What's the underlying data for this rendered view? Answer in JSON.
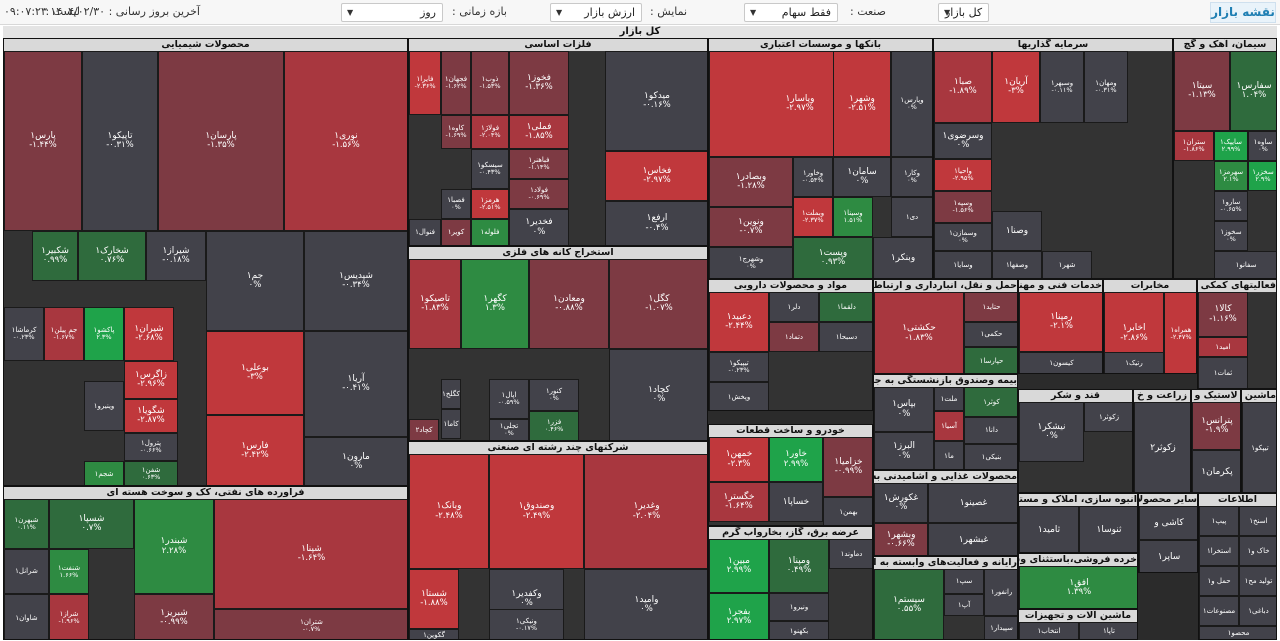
{
  "header": {
    "brand": "نقشه بازار",
    "list_label": "لیست :",
    "list_value": "کل بازار",
    "industry_label": "صنعت :",
    "industry_value": "فقط سهام",
    "display_label": "نمایش :",
    "display_value": "ارزش بازار",
    "period_label": "بازه زمانی :",
    "period_value": "روز",
    "last_update_label": "آخرین بروز رسانی :",
    "last_update_value": "۱۴۰۴/۰۲/۳۰ ۰۹:۰۷:۲۳"
  },
  "map_title": "کل بازار",
  "colors": {
    "strong_neg": "#c0383c",
    "neg": "#a8373f",
    "weak_neg": "#7d3a43",
    "neutral": "#42424a",
    "weak_pos": "#2f6b3d",
    "pos": "#2e8b42",
    "strong_pos": "#1fa34a"
  },
  "sectors": [
    {
      "title": "محصولات شیمیایی",
      "tiles": [
        [
          "نوری۱",
          "-۱.۵۶%",
          "neg"
        ],
        [
          "پارسان۱",
          "-۱.۳۵%",
          "weak_neg"
        ],
        [
          "تاپیکو۱",
          "-۰.۳۱%",
          "neutral"
        ],
        [
          "پارس۱",
          "-۱.۴۴%",
          "weak_neg"
        ],
        [
          "شپدیس۱",
          "-۰.۳۴%",
          "neutral"
        ],
        [
          "جم۱",
          "۰%",
          "neutral"
        ],
        [
          "شیراز۱",
          "-۰.۱۸%",
          "neutral"
        ],
        [
          "شخارک۱",
          "۰.۷۶%",
          "weak_pos"
        ],
        [
          "شکبیر۱",
          "۰.۹۹%",
          "weak_pos"
        ],
        [
          "آریا۱",
          "-۰.۴۱%",
          "neutral"
        ],
        [
          "بوعلی۱",
          "-۳%",
          "strong_neg"
        ],
        [
          "شیران۱",
          "-۲.۶۸%",
          "strong_neg"
        ],
        [
          "پاکشو۱",
          "۲.۳%",
          "strong_pos"
        ],
        [
          "جم پیلن۱",
          "-۱.۶۷%",
          "neg"
        ],
        [
          "کرماشا۱",
          "-۰.۲۳%",
          "neutral"
        ],
        [
          "زاگرس۱",
          "-۲.۹۶%",
          "strong_neg"
        ],
        [
          "شگویا۱",
          "-۲.۸۷%",
          "strong_neg"
        ],
        [
          "مارون۱",
          "۰%",
          "neutral"
        ],
        [
          "فارس۱",
          "-۲.۴۲%",
          "strong_neg"
        ],
        [
          "پترول۱",
          "-۰.۶۶%",
          "neutral"
        ],
        [
          "شفن۱",
          "۰.۶۳%",
          "weak_pos"
        ],
        [
          "وینیرو۱",
          "",
          "neutral"
        ],
        [
          "شجم۱",
          "",
          "pos"
        ]
      ]
    },
    {
      "title": "فلزات اساسی",
      "tiles": [
        [
          "میدکو۱",
          "-۰.۱۶%",
          "neutral"
        ],
        [
          "فخوز۱",
          "-۱.۳۶%",
          "weak_neg"
        ],
        [
          "ذوب۱",
          "-۱.۵۳%",
          "weak_neg"
        ],
        [
          "فجهان۱",
          "-۱.۶۲%",
          "weak_neg"
        ],
        [
          "فایرا۱",
          "-۲.۳۶%",
          "strong_neg"
        ],
        [
          "فخاس۱",
          "-۲.۹۷%",
          "strong_neg"
        ],
        [
          "فملی۱",
          "-۱.۸۵%",
          "neg"
        ],
        [
          "فولاژ۱",
          "-۲.۰۴%",
          "neg"
        ],
        [
          "کاوه۱",
          "-۱.۶۹%",
          "weak_neg"
        ],
        [
          "ارفع۱",
          "-۰.۴%",
          "neutral"
        ],
        [
          "فباهنر۱",
          "-۱.۱۴%",
          "weak_neg"
        ],
        [
          "فولاد۱",
          "-۰.۶۹%",
          "weak_neg"
        ],
        [
          "فخدیر۱",
          "۰%",
          "neutral"
        ],
        [
          "سیسکو۱",
          "-۰.۴۳%",
          "neutral"
        ],
        [
          "هرمز۱",
          "-۲.۵۱%",
          "strong_neg"
        ],
        [
          "فصبا۱",
          "۰%",
          "neutral"
        ],
        [
          "فلوله۱",
          "",
          "pos"
        ],
        [
          "کویر۱",
          "",
          "weak_neg"
        ],
        [
          "فنوال۱",
          "",
          "neutral"
        ]
      ]
    },
    {
      "title": "استخراج کانه های فلزی",
      "tiles": [
        [
          "کگل۱",
          "-۱.۰۷%",
          "weak_neg"
        ],
        [
          "ومعادن۱",
          "-۰.۸۸%",
          "weak_neg"
        ],
        [
          "کگهر۱",
          "۱.۳%",
          "pos"
        ],
        [
          "تاصیکو۱",
          "-۱.۸۳%",
          "neg"
        ],
        [
          "کچاد۱",
          "۰%",
          "neutral"
        ],
        [
          "کنور۱",
          "۰%",
          "neutral"
        ],
        [
          "اپال۱",
          "-۰.۵۹%",
          "neutral"
        ],
        [
          "کگلخ۱",
          "",
          "neutral"
        ],
        [
          "کاما۱",
          "",
          "neutral"
        ],
        [
          "فزر۱",
          "۰.۴۶%",
          "weak_pos"
        ],
        [
          "تجلی۱",
          "۰%",
          "neutral"
        ],
        [
          "کچاد۲",
          "",
          "weak_neg"
        ]
      ]
    },
    {
      "title": "شرکتهای چند رشته ای صنعتی",
      "tiles": [
        [
          "وغدیر۱",
          "-۲.۰۴%",
          "neg"
        ],
        [
          "وصندوق۱",
          "-۲.۴۹%",
          "strong_neg"
        ],
        [
          "وبانک۱",
          "-۲.۴۸%",
          "strong_neg"
        ],
        [
          "وامید۱",
          "۰%",
          "neutral"
        ],
        [
          "وکفدیر۱",
          "۰%",
          "neutral"
        ],
        [
          "شستا۱",
          "-۱.۸۸%",
          "strong_neg"
        ],
        [
          "ونیکی۱",
          "-۰.۱۷%",
          "neutral"
        ],
        [
          "گکوین۱",
          "",
          "neutral"
        ]
      ]
    },
    {
      "title": "فراورده های نفتی، کک و سوخت هسته ای",
      "tiles": [
        [
          "شپنا۱",
          "-۱.۶۴%",
          "neg"
        ],
        [
          "شبندر۱",
          "۲.۲۸%",
          "pos"
        ],
        [
          "شسپا۱",
          "۰.۷%",
          "weak_pos"
        ],
        [
          "شبهرن۱",
          "۰.۱۱%",
          "weak_pos"
        ],
        [
          "شنفت۱",
          "۱.۶۶%",
          "pos"
        ],
        [
          "شرانل۱",
          "",
          "neutral"
        ],
        [
          "شتران۱",
          "-۰.۷%",
          "weak_neg"
        ],
        [
          "شبریز۱",
          "-۰.۹۹%",
          "weak_neg"
        ],
        [
          "شراز۱",
          "-۱.۹۶%",
          "neg"
        ],
        [
          "شاوان۱",
          "",
          "neutral"
        ]
      ]
    },
    {
      "title": "بانکها و موسسات اعتباری",
      "tiles": [
        [
          "وپاسار۱",
          "-۲.۹۷%",
          "strong_neg"
        ],
        [
          "وشهر۱",
          "-۲.۵۱%",
          "strong_neg"
        ],
        [
          "وپارس۱",
          "۰%",
          "neutral"
        ],
        [
          "وبصادر۱",
          "-۱.۲۸%",
          "weak_neg"
        ],
        [
          "وخاور۱",
          "-۰.۵۴%",
          "neutral"
        ],
        [
          "سامان۱",
          "۰%",
          "neutral"
        ],
        [
          "وکار۱",
          "۰%",
          "neutral"
        ],
        [
          "ونوین۱",
          "-۰.۷%",
          "weak_neg"
        ],
        [
          "وبملت۱",
          "-۲.۳۷%",
          "strong_neg"
        ],
        [
          "وسینا۱",
          "۱.۵۱%",
          "pos"
        ],
        [
          "وشهرج۱",
          "۰%",
          "neutral"
        ],
        [
          "وپست۱",
          "۰.۹۳%",
          "weak_pos"
        ],
        [
          "وبنکر۱",
          "",
          "neutral"
        ],
        [
          "دی۱",
          "",
          "neutral"
        ]
      ]
    },
    {
      "title": "سرمایه گذاریها",
      "tiles": [
        [
          "صبا۱",
          "-۱.۸۹%",
          "neg"
        ],
        [
          "آریان۱",
          "-۳%",
          "strong_neg"
        ],
        [
          "وسبهر۱",
          "-۰.۱۱%",
          "neutral"
        ],
        [
          "ومهان۱",
          "-۰.۳۱%",
          "neutral"
        ],
        [
          "وسرضوی۱",
          "۰%",
          "neutral"
        ],
        [
          "واحیا۱",
          "-۲.۹۵%",
          "strong_neg"
        ],
        [
          "وسپه۱",
          "-۱.۵۶%",
          "weak_neg"
        ],
        [
          "وسمازن۱",
          "۰%",
          "neutral"
        ],
        [
          "وسایا۱",
          "",
          "neutral"
        ],
        [
          "وصنا۱",
          "",
          "neutral"
        ],
        [
          "وصفها۱",
          "",
          "neutral"
        ],
        [
          "شهر۱",
          "",
          "neutral"
        ]
      ]
    },
    {
      "title": "سیمان، آهک و گچ",
      "tiles": [
        [
          "سیتا۱",
          "-۱.۱۳%",
          "weak_neg"
        ],
        [
          "سفارس۱",
          "۱.۰۴%",
          "weak_pos"
        ],
        [
          "ستران۱",
          "-۱.۸۶%",
          "neg"
        ],
        [
          "سایپک۱",
          "۲.۹۹%",
          "strong_pos"
        ],
        [
          "ساوه۱",
          "۰%",
          "neutral"
        ],
        [
          "سهرمز۱",
          "۲.۱%",
          "pos"
        ],
        [
          "سخزر۱",
          "۲.۹%",
          "strong_pos"
        ],
        [
          "سارو۱",
          "-۰.۶۵%",
          "neutral"
        ],
        [
          "سخوز۱",
          "۰%",
          "neutral"
        ],
        [
          "سفانو۱",
          "",
          "neutral"
        ]
      ]
    },
    {
      "title": "مواد و محصولات دارویی",
      "tiles": [
        [
          "دعبید۱",
          "-۲.۴۴%",
          "strong_neg"
        ],
        [
          "دلر۱",
          "",
          "neutral"
        ],
        [
          "دتماد۱",
          "",
          "weak_neg"
        ],
        [
          "تیپیکو۱",
          "-۰.۲۳%",
          "neutral"
        ],
        [
          "دلقما۱",
          "",
          "weak_pos"
        ],
        [
          "دسبحا۱",
          "",
          "neutral"
        ],
        [
          "وپخش۱",
          "",
          "neutral"
        ]
      ]
    },
    {
      "title": "حمل و نقل، انبارداری و ارتباطات",
      "tiles": [
        [
          "حکشتی۱",
          "-۱.۸۳%",
          "neg"
        ],
        [
          "حتاید۱",
          "",
          "weak_neg"
        ],
        [
          "حکمی۱",
          "",
          "neutral"
        ],
        [
          "حپارسا۱",
          "",
          "weak_pos"
        ]
      ]
    },
    {
      "title": "خدمات فنی و مهندسی",
      "tiles": [
        [
          "رمپنا۱",
          "-۲.۱%",
          "strong_neg"
        ],
        [
          "کیسون۱",
          "",
          "neutral"
        ]
      ]
    },
    {
      "title": "مخابرات",
      "tiles": [
        [
          "اخابر۱",
          "-۲.۸۶%",
          "strong_neg"
        ],
        [
          "همراه۱",
          "-۲.۴۷%",
          "strong_neg"
        ],
        [
          "رتیک۱",
          "",
          "neutral"
        ]
      ]
    },
    {
      "title": "فعالیتهای کمکی به",
      "tiles": [
        [
          "کالا۱",
          "-۱.۱۶%",
          "weak_neg"
        ],
        [
          "امید۱",
          "",
          "neg"
        ],
        [
          "ثمات۱",
          "",
          "neutral"
        ]
      ]
    },
    {
      "title": "بیمه وصندوق بازنشستگی به جزتام",
      "tiles": [
        [
          "بپاس۱",
          "۰%",
          "neutral"
        ],
        [
          "البرز۱",
          "۰%",
          "neutral"
        ],
        [
          "کوثر۱",
          "",
          "weak_pos"
        ],
        [
          "ملت۱",
          "",
          "neutral"
        ],
        [
          "آسیا۱",
          "",
          "neg"
        ],
        [
          "ما۱",
          "",
          "neutral"
        ],
        [
          "دانا۱",
          "",
          "neutral"
        ],
        [
          "بنیکی۱",
          "",
          "neutral"
        ]
      ]
    },
    {
      "title": "قند و شکر",
      "tiles": [
        [
          "نیشکر۱",
          "۰%",
          "neutral"
        ],
        [
          "زکوثر۱",
          "",
          "neutral"
        ]
      ]
    },
    {
      "title": "زراعت و خ",
      "tiles": [
        [
          "زکوثر۲",
          "",
          "neutral"
        ]
      ]
    },
    {
      "title": "لاستیک و",
      "tiles": [
        [
          "پترانس۱",
          "-۱.۹%",
          "weak_neg"
        ],
        [
          "پکرمان۱",
          "",
          "neutral"
        ]
      ]
    },
    {
      "title": "ماشین آل",
      "tiles": [
        [
          "تیپکو۱",
          "",
          "neutral"
        ]
      ]
    },
    {
      "title": "خودرو و ساخت قطعات",
      "tiles": [
        [
          "خمهن۱",
          "-۲.۳%",
          "strong_neg"
        ],
        [
          "خاور۱",
          "۲.۹۹%",
          "strong_pos"
        ],
        [
          "خگستر۱",
          "-۱.۶۴%",
          "neg"
        ],
        [
          "خساپا۱",
          "",
          "neutral"
        ],
        [
          "خزامیا۱",
          "-۰.۹۹%",
          "weak_neg"
        ],
        [
          "بهمن۱",
          "",
          "neutral"
        ]
      ]
    },
    {
      "title": "محصولات غذایی و آشامیدنی به جز",
      "tiles": [
        [
          "غکورش۱",
          "۰%",
          "neutral"
        ],
        [
          "وبشهر۱",
          "-۰.۶۶%",
          "weak_neg"
        ],
        [
          "غصینو۱",
          "",
          "neutral"
        ],
        [
          "غبشهر۱",
          "",
          "neutral"
        ]
      ]
    },
    {
      "title": "انبوه سازی، املاک و مستغل",
      "tiles": [
        [
          "ثامید۱",
          "",
          "neutral"
        ],
        [
          "ثنوسا۱",
          "",
          "neutral"
        ]
      ]
    },
    {
      "title": "عرضه برق، گاز، بخاروآب گرم",
      "tiles": [
        [
          "مبین۱",
          "۲.۹۹%",
          "strong_pos"
        ],
        [
          "ومپنا۱",
          "۰.۴۹%",
          "weak_pos"
        ],
        [
          "دماوند۱",
          "",
          "neutral"
        ],
        [
          "بفجر۱",
          "۲.۹۷%",
          "strong_pos"
        ],
        [
          "ونیرو۱",
          "",
          "neutral"
        ],
        [
          "بکهنو۱",
          "",
          "neutral"
        ]
      ]
    },
    {
      "title": "رایانه و فعالیت‌های وابسته به آن",
      "tiles": [
        [
          "سیستم۱",
          "۰.۵۵%",
          "weak_pos"
        ],
        [
          "سپ۱",
          "",
          "neutral"
        ],
        [
          "آپ۱",
          "",
          "neutral"
        ],
        [
          "رانفور۱",
          "",
          "neutral"
        ],
        [
          "سپیدار۱",
          "",
          "neutral"
        ]
      ]
    },
    {
      "title": "خرده فروشی،باستثنای وسا",
      "tiles": [
        [
          "افق۱",
          "۱.۳۹%",
          "pos"
        ]
      ]
    },
    {
      "title": "ماشین آلات و تجهیزات",
      "tiles": [
        [
          "انتخاب۱",
          "",
          "neutral"
        ],
        [
          "تاپا۱",
          "",
          "neutral"
        ]
      ]
    },
    {
      "title": "سایر محصولا",
      "tiles": [
        [
          "کاشی و",
          "",
          "neutral"
        ],
        [
          "ساپر۱",
          "",
          "neutral"
        ]
      ]
    },
    {
      "title": "اطلاعات",
      "tiles": [
        [
          "پیپ۱",
          "",
          "neutral"
        ],
        [
          "اسنخ۱",
          "",
          "neutral"
        ],
        [
          "استخرا۱",
          "",
          "neutral"
        ],
        [
          "خاک و۱",
          "",
          "neutral"
        ],
        [
          "حمل و۱",
          "",
          "neutral"
        ],
        [
          "تولید مح۱",
          "",
          "neutral"
        ],
        [
          "مصنوعات۱",
          "",
          "neutral"
        ],
        [
          "دباغی۱",
          "",
          "neutral"
        ],
        [
          "محصو۱",
          "",
          "neutral"
        ]
      ]
    }
  ]
}
